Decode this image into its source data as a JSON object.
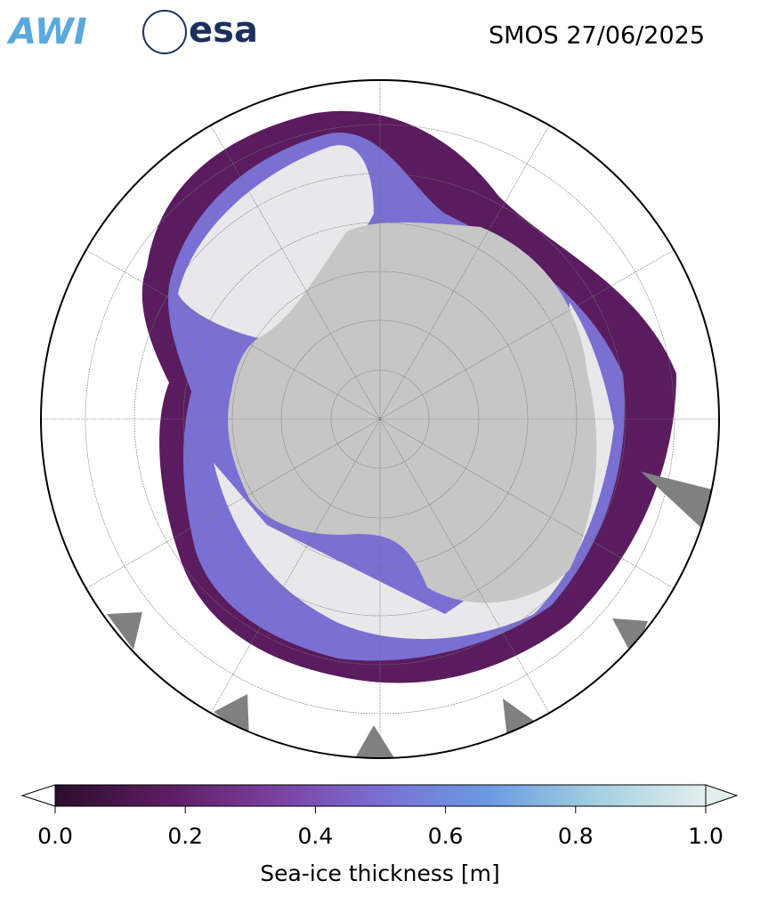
{
  "header": {
    "title": "SMOS 27/06/2025",
    "logos": [
      "AWI",
      "esa"
    ]
  },
  "colorbar": {
    "label": "Sea-ice thickness [m]",
    "lim": [
      0,
      1
    ],
    "ticks": [
      {
        "value": 0,
        "label": "0.0"
      },
      0.2,
      0.4,
      0.6,
      0.8,
      {
        "value": 1,
        "label": "1.0"
      }
    ],
    "colors": [
      "#2b0e2b",
      "#5c1b60",
      "#7a3f9e",
      "#7a6fd2",
      "#6a9be2",
      "#a3d0e0",
      "#e4eeee"
    ]
  }
}
